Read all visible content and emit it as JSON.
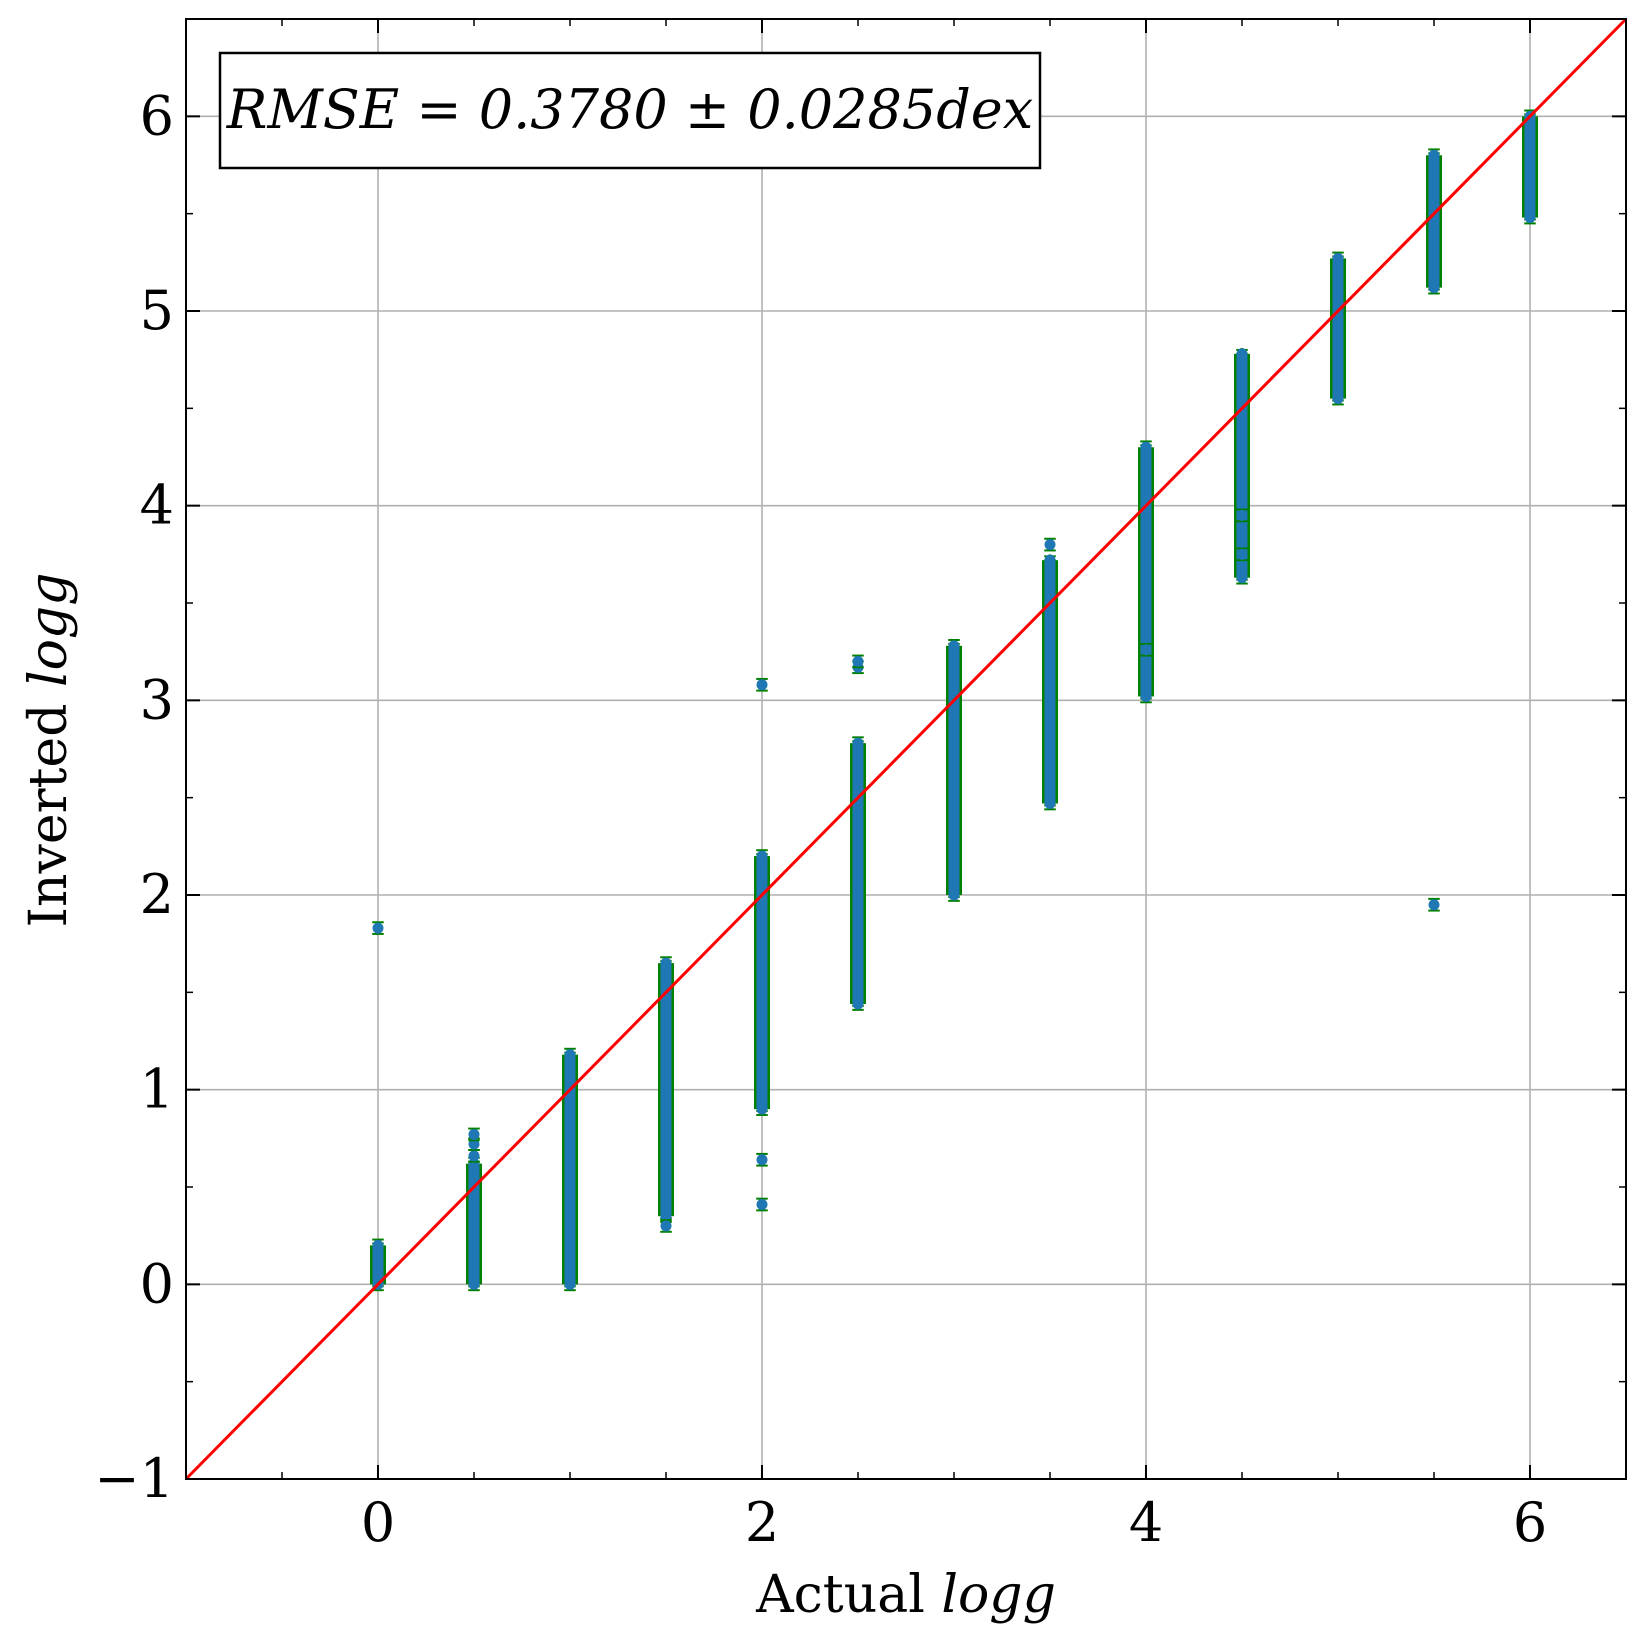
{
  "chart_data": {
    "type": "scatter",
    "title": "",
    "xlabel": "Actual",
    "xlabel_var": "logg",
    "ylabel": "Inverted",
    "ylabel_var": "logg",
    "xlim": [
      -1,
      6.5
    ],
    "ylim": [
      -1,
      6.5
    ],
    "xticks": [
      0,
      2,
      4,
      6
    ],
    "yticks": [
      -1,
      0,
      1,
      2,
      3,
      4,
      5,
      6
    ],
    "xtick_labels": [
      "0",
      "2",
      "4",
      "6"
    ],
    "ytick_labels": [
      "−1",
      "0",
      "1",
      "2",
      "3",
      "4",
      "5",
      "6"
    ],
    "grid": true,
    "legend": "none",
    "annotation": "RMSE = 0.3780 ± 0.0285dex",
    "colors": {
      "points": "#1f77b4",
      "errorbars": "#008000",
      "reference_line": "#ff0000",
      "grid": "#b0b0b0"
    },
    "reference_line": {
      "label": "y = x",
      "from": [
        -1,
        -1
      ],
      "to": [
        6.5,
        6.5
      ]
    },
    "groups": [
      {
        "x": 0.0,
        "ymin": 0.0,
        "ymax": 0.2,
        "outliers": [
          1.83
        ]
      },
      {
        "x": 0.5,
        "ymin": 0.0,
        "ymax": 0.62,
        "outliers": [
          0.66,
          0.72,
          0.77
        ]
      },
      {
        "x": 1.0,
        "ymin": 0.0,
        "ymax": 1.18,
        "outliers": []
      },
      {
        "x": 1.5,
        "ymin": 0.35,
        "ymax": 1.65,
        "outliers": [
          0.3
        ]
      },
      {
        "x": 2.0,
        "ymin": 0.9,
        "ymax": 2.2,
        "outliers": [
          0.41,
          0.64,
          3.08
        ]
      },
      {
        "x": 2.5,
        "ymin": 1.44,
        "ymax": 2.78,
        "outliers": [
          3.17,
          3.2
        ]
      },
      {
        "x": 3.0,
        "ymin": 2.0,
        "ymax": 3.28,
        "outliers": []
      },
      {
        "x": 3.5,
        "ymin": 2.47,
        "ymax": 3.72,
        "outliers": [
          3.8
        ]
      },
      {
        "x": 4.0,
        "ymin": 3.02,
        "ymax": 4.3,
        "outliers": [
          3.26
        ]
      },
      {
        "x": 4.5,
        "ymin": 3.63,
        "ymax": 4.78,
        "outliers": [
          3.75,
          3.95
        ]
      },
      {
        "x": 5.0,
        "ymin": 4.55,
        "ymax": 5.27,
        "outliers": []
      },
      {
        "x": 5.5,
        "ymin": 5.12,
        "ymax": 5.8,
        "outliers": [
          1.95
        ]
      },
      {
        "x": 6.0,
        "ymin": 5.48,
        "ymax": 6.0,
        "outliers": []
      }
    ],
    "errorbar_halfwidth": 0.03
  }
}
